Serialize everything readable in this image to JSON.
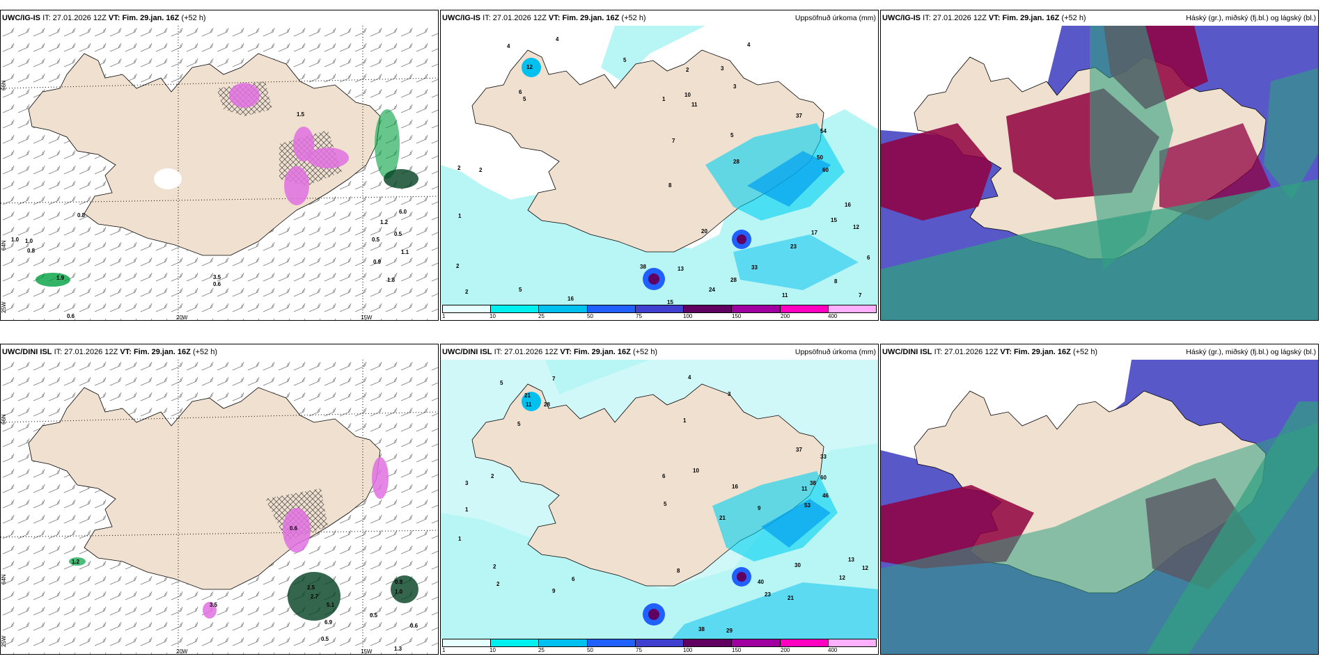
{
  "rows": [
    {
      "model": "UWC/IG-IS",
      "it_label": "IT:",
      "it_value": "27.01.2026 12Z",
      "vt_label": "VT:",
      "vt_value": "Fim. 29.jan. 16Z",
      "lead": "(+52 h)"
    },
    {
      "model": "UWC/DINI ISL",
      "it_label": "IT:",
      "it_value": "27.01.2026 12Z",
      "vt_label": "VT:",
      "vt_value": "Fim. 29.jan. 16Z",
      "lead": "(+52 h)"
    }
  ],
  "precip_title": "Uppsöfnuð úrkoma (mm)",
  "cloud_title": "Háský (gr.), miðský (fj.bl.) og lágský (bl.)",
  "axis": {
    "lat66": "66N",
    "lat64": "64N",
    "lat25": "25W",
    "lon20": "20W",
    "lon15": "15W"
  },
  "legend": {
    "ticks": [
      "1",
      "10",
      "25",
      "50",
      "75",
      "100",
      "150",
      "200",
      "400"
    ],
    "colors": [
      "#e8ffff",
      "#00f0f0",
      "#00c0f0",
      "#2060ff",
      "#4040d0",
      "#600060",
      "#a000a0",
      "#ff00c0",
      "#ffb0ff"
    ]
  },
  "colors": {
    "land": "#f0e0d0",
    "sea_precip": "#b8f5f5",
    "snow_pink": "#e070e0",
    "rain_green": "#00a040",
    "cloud_high": "#900040",
    "cloud_mid": "#4040c0",
    "cloud_low": "#30a080"
  },
  "precip_labels_top": [
    "4",
    "4",
    "12",
    "5",
    "6",
    "5",
    "2",
    "2",
    "1",
    "2",
    "2",
    "5",
    "16",
    "38",
    "13",
    "15",
    "24",
    "28",
    "33",
    "23",
    "17",
    "15",
    "12",
    "6",
    "7",
    "8",
    "11",
    "16",
    "20",
    "28",
    "37",
    "54",
    "50",
    "60",
    "10",
    "11",
    "8",
    "7",
    "5",
    "3",
    "2",
    "1",
    "3",
    "4"
  ],
  "precip_labels_bottom": [
    "5",
    "7",
    "21",
    "11",
    "28",
    "5",
    "2",
    "1",
    "3",
    "1",
    "2",
    "2",
    "9",
    "6",
    "8",
    "40",
    "23",
    "21",
    "30",
    "13",
    "12",
    "12",
    "38",
    "29",
    "37",
    "33",
    "60",
    "53",
    "46",
    "38",
    "11",
    "16",
    "21",
    "9",
    "5",
    "6",
    "10",
    "4",
    "3",
    "1"
  ],
  "snow_labels_top": [
    "0.8",
    "1.0",
    "1.0",
    "0.8",
    "1.9",
    "0.6",
    "3.5",
    "0.6",
    "0.5",
    "0.9",
    "1.8",
    "1.1",
    "6.0",
    "0.5",
    "1.2",
    "1.5"
  ],
  "snow_labels_bottom": [
    "1.2",
    "3.5",
    "0.6",
    "2.5",
    "2.7",
    "5.1",
    "6.9",
    "0.5",
    "0.6",
    "0.9",
    "1.0",
    "0.5",
    "1.3"
  ]
}
